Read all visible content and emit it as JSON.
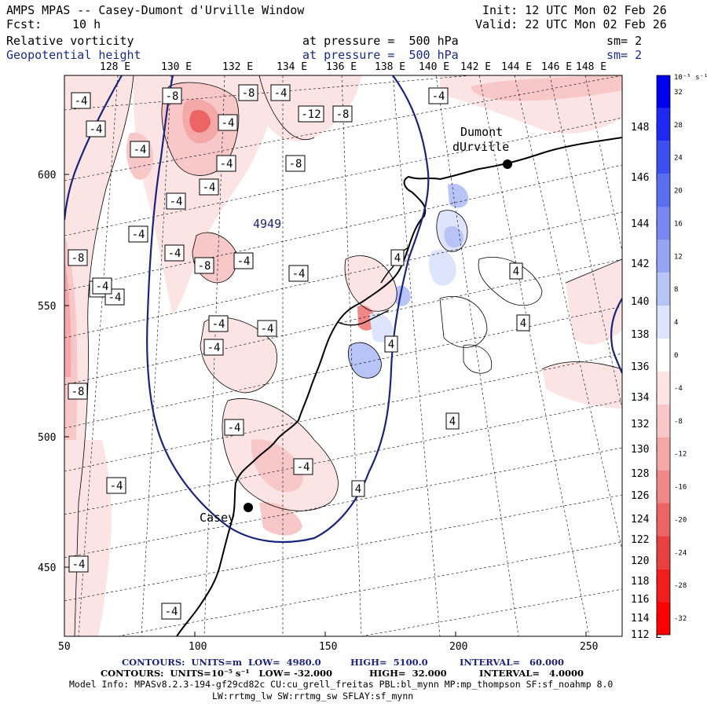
{
  "header": {
    "title": "AMPS MPAS -- Casey-Dumont d'Urville Window",
    "init": "Init: 12 UTC Mon 02 Feb 26",
    "fcst_label": "Fcst:",
    "fcst_value": "10 h",
    "valid": "Valid: 22 UTC Mon 02 Feb 26",
    "field1": "Relative vorticity",
    "field1_level": "at pressure =  500 hPa",
    "field1_sm": "sm= 2",
    "field2": "Geopotential height",
    "field2_level": "at pressure =  500 hPa",
    "field2_sm": "sm= 2"
  },
  "map": {
    "top_lon_labels": [
      "128 E",
      "130 E",
      "132 E",
      "134 E",
      "136 E",
      "138 E",
      "140 E",
      "142 E",
      "144 E",
      "146 E",
      "148 E"
    ],
    "right_lon_labels": [
      "148 E",
      "146 E",
      "144 E",
      "142 E",
      "140 E",
      "138 E",
      "136 E",
      "134 E",
      "132 E",
      "130 E",
      "128 E",
      "126 E",
      "124 E",
      "122 E",
      "120 E",
      "118 E",
      "116 E",
      "114 E",
      "112 E"
    ],
    "x_ticks": [
      "50",
      "100",
      "150",
      "200",
      "250"
    ],
    "y_ticks": [
      "600",
      "550",
      "500",
      "450"
    ],
    "stations": [
      {
        "name": "Dumont",
        "name2": "dUrville"
      },
      {
        "name": "Casey"
      }
    ],
    "height_label": "4949",
    "contour_labels": [
      "-4",
      "-8",
      "-8",
      "-4",
      "-4",
      "-4",
      "-12",
      "-8",
      "-4",
      "-4",
      "-4",
      "-8",
      "-4",
      "-4",
      "-4",
      "-8",
      "-4",
      "-8",
      "-4",
      "-4",
      "-4",
      "-4",
      "-4",
      "-4",
      "-4",
      "-8",
      "-4",
      "-4",
      "-4",
      "-4",
      "-4",
      "4",
      "4",
      "4",
      "4",
      "4",
      "4",
      "-4"
    ]
  },
  "colorbar": {
    "units": "10⁻⁵ s⁻¹",
    "labels": [
      "32",
      "28",
      "24",
      "20",
      "16",
      "12",
      "8",
      "4",
      "0",
      "-4",
      "-8",
      "-12",
      "-16",
      "-20",
      "-24",
      "-28",
      "-32"
    ],
    "colors": [
      "#0000f0",
      "#1e28f0",
      "#3c50f0",
      "#5a6ef0",
      "#7888f0",
      "#96a5f2",
      "#b8c4f6",
      "#dde4fb",
      "#ffffff",
      "#fde4e4",
      "#f8c8c8",
      "#f4a8a8",
      "#f08888",
      "#ec6464",
      "#e84040",
      "#f01e1e",
      "#ff0000"
    ]
  },
  "footer": {
    "line1_a": "CONTOURS:  UNITS=m  LOW=  4980.0",
    "line1_b": "HIGH=  5100.0",
    "line1_c": "INTERVAL=   60.000",
    "line2_a": "CONTOURS:  UNITS=10⁻⁵ s⁻¹   LOW= -32.000",
    "line2_b": "HIGH=  32.000",
    "line2_c": "INTERVAL=   4.0000",
    "line3": "Model Info: MPASv8.2.3-194-gf29cd82c CU:cu_grell_freitas PBL:bl_mynn MP:mp_thompson SF:sf_noahmp 8.0",
    "line4": "LW:rrtmg_lw SW:rrtmg_sw SFLAY:sf_mynn"
  }
}
